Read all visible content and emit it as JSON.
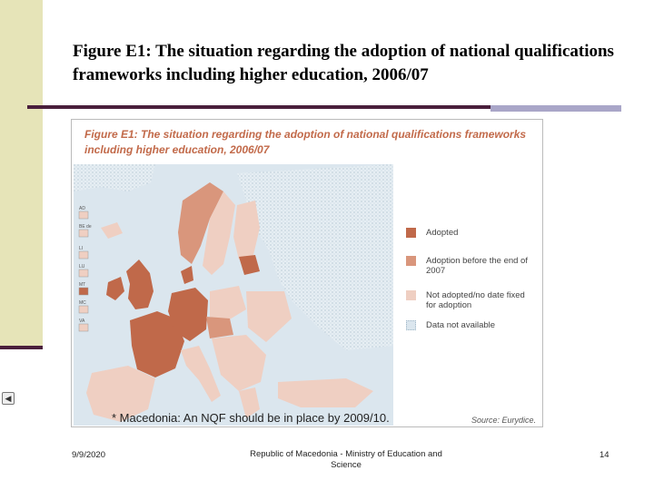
{
  "slide": {
    "title": "Figure E1: The situation regarding the adoption of national qualifications frameworks including higher education, 2006/07"
  },
  "figure": {
    "title": "Figure E1: The situation regarding the adoption of national qualifications frameworks including higher education, 2006/07",
    "legend": [
      {
        "label": "Adopted",
        "color": "#c0694a"
      },
      {
        "label": "Adoption before the end of 2007",
        "color": "#d9967c"
      },
      {
        "label": "Not adopted/no date fixed for adoption",
        "color": "#efcfc2"
      },
      {
        "label": "Data not available",
        "color": "#dbe6ee"
      }
    ],
    "inset_labels": [
      "AD",
      "BE de",
      "LI",
      "LU",
      "MT",
      "MC",
      "VA"
    ],
    "source_label": "Source:",
    "source_value": "Eurydice.",
    "footnote": "* Macedonia: An NQF should be in place by 2009/10."
  },
  "footer": {
    "date": "9/9/2020",
    "center": "Republic of Macedonia - Ministry of Education and Science",
    "page": "14"
  },
  "colors": {
    "accent_band": "#e6e4b8",
    "rule": "#4a1f3c",
    "rule_accent": "#a9a6c8",
    "figure_title": "#c26a4a"
  }
}
